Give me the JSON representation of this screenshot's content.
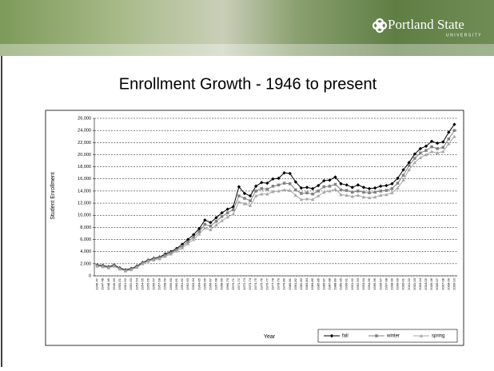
{
  "header": {
    "logo": "Portland State",
    "logo_sub": "UNIVERSITY"
  },
  "chart_data": {
    "type": "line",
    "title": "Enrollment Growth - 1946 to present",
    "x_label": "Year",
    "y_label": "Student Enrollment",
    "categories": [
      "1946-47",
      "1947-48",
      "1948-49",
      "1949-50",
      "1950-51",
      "1951-52",
      "1952-53",
      "1953-54",
      "1954-55",
      "1955-56",
      "1956-57",
      "1957-58",
      "1958-59",
      "1959-60",
      "1960-61",
      "1961-62",
      "1962-63",
      "1963-64",
      "1964-65",
      "1965-66",
      "1966-67",
      "1967-68",
      "1968-69",
      "1969-70",
      "1970-71",
      "1971-72",
      "1972-73",
      "1973-74",
      "1974-75",
      "1975-76",
      "1976-77",
      "1977-78",
      "1978-79",
      "1979-80",
      "1980-81",
      "1981-82",
      "1982-83",
      "1983-84",
      "1984-85",
      "1985-86",
      "1986-87",
      "1987-88",
      "1988-89",
      "1989-90",
      "1990-91",
      "1991-92",
      "1992-93",
      "1993-94",
      "1994-95",
      "1995-96",
      "1996-97",
      "1997-98",
      "1998-99",
      "1999-00",
      "2000-01",
      "2001-02",
      "2002-03",
      "2003-04",
      "2004-05",
      "2005-06",
      "2006-07",
      "2007-08",
      "2008-09",
      "2009-10"
    ],
    "series": [
      {
        "name": "fall",
        "color": "#000000",
        "marker": "diamond",
        "values": [
          1800,
          1700,
          1500,
          1800,
          1300,
          1000,
          1200,
          1600,
          2200,
          2600,
          2900,
          3100,
          3600,
          4000,
          4500,
          5200,
          6000,
          6800,
          7800,
          9200,
          8800,
          9600,
          10400,
          11000,
          11400,
          14700,
          13600,
          13200,
          14800,
          15400,
          15300,
          16000,
          16100,
          17000,
          16900,
          15500,
          14500,
          14600,
          14400,
          14900,
          15700,
          15800,
          16300,
          15200,
          15000,
          14600,
          15000,
          14600,
          14400,
          14500,
          14800,
          14900,
          15200,
          16100,
          17500,
          18700,
          20100,
          21000,
          21400,
          22200,
          21900,
          22100,
          23700,
          25000
        ]
      },
      {
        "name": "winter",
        "color": "#808080",
        "marker": "square",
        "values": [
          1700,
          1600,
          1400,
          1700,
          1200,
          900,
          1100,
          1500,
          2100,
          2500,
          2800,
          3000,
          3400,
          3800,
          4300,
          4900,
          5600,
          6400,
          7300,
          8500,
          8200,
          9000,
          9800,
          10400,
          10900,
          13200,
          12800,
          12400,
          14000,
          14400,
          14300,
          14800,
          15000,
          15300,
          15200,
          14200,
          13600,
          13700,
          13500,
          14000,
          14700,
          14800,
          15100,
          14200,
          14100,
          13800,
          14000,
          13800,
          13700,
          13800,
          14000,
          14100,
          14400,
          15300,
          16600,
          18200,
          19400,
          20300,
          20700,
          21300,
          21000,
          21200,
          22600,
          24000
        ]
      },
      {
        "name": "spring",
        "color": "#a6a6a6",
        "marker": "triangle",
        "values": [
          1600,
          1500,
          1300,
          1600,
          1100,
          800,
          1000,
          1400,
          2000,
          2400,
          2600,
          2800,
          3200,
          3600,
          4100,
          4600,
          5300,
          6000,
          6900,
          7900,
          7600,
          8400,
          9100,
          9700,
          10200,
          12200,
          11900,
          11600,
          13200,
          13500,
          13500,
          13900,
          14000,
          14200,
          14100,
          13300,
          12600,
          12700,
          12600,
          13200,
          13800,
          14000,
          14300,
          13400,
          13300,
          13100,
          13300,
          13000,
          12900,
          13000,
          13300,
          13400,
          13700,
          14500,
          15800,
          17500,
          18700,
          19500,
          20000,
          20500,
          20300,
          20500,
          21800,
          23000
        ]
      }
    ],
    "ylim": [
      0,
      26000
    ],
    "yticks": [
      0,
      {
        "value": 2000,
        "label": "2,000"
      },
      {
        "value": 4000,
        "label": "4,000"
      },
      {
        "value": 6000,
        "label": "6,000"
      },
      {
        "value": 8000,
        "label": "8,000"
      },
      {
        "value": 10000,
        "label": "10,000"
      },
      {
        "value": 12000,
        "label": "12,000"
      },
      {
        "value": 14000,
        "label": "14,000"
      },
      {
        "value": 16000,
        "label": "16,000"
      },
      {
        "value": 18000,
        "label": "18,000"
      },
      {
        "value": 20000,
        "label": "20,000"
      },
      {
        "value": 22000,
        "label": "22,000"
      },
      {
        "value": 24000,
        "label": "24,000"
      },
      {
        "value": 26000,
        "label": "26,000"
      }
    ],
    "grid": true,
    "legend": "bottom-right"
  }
}
